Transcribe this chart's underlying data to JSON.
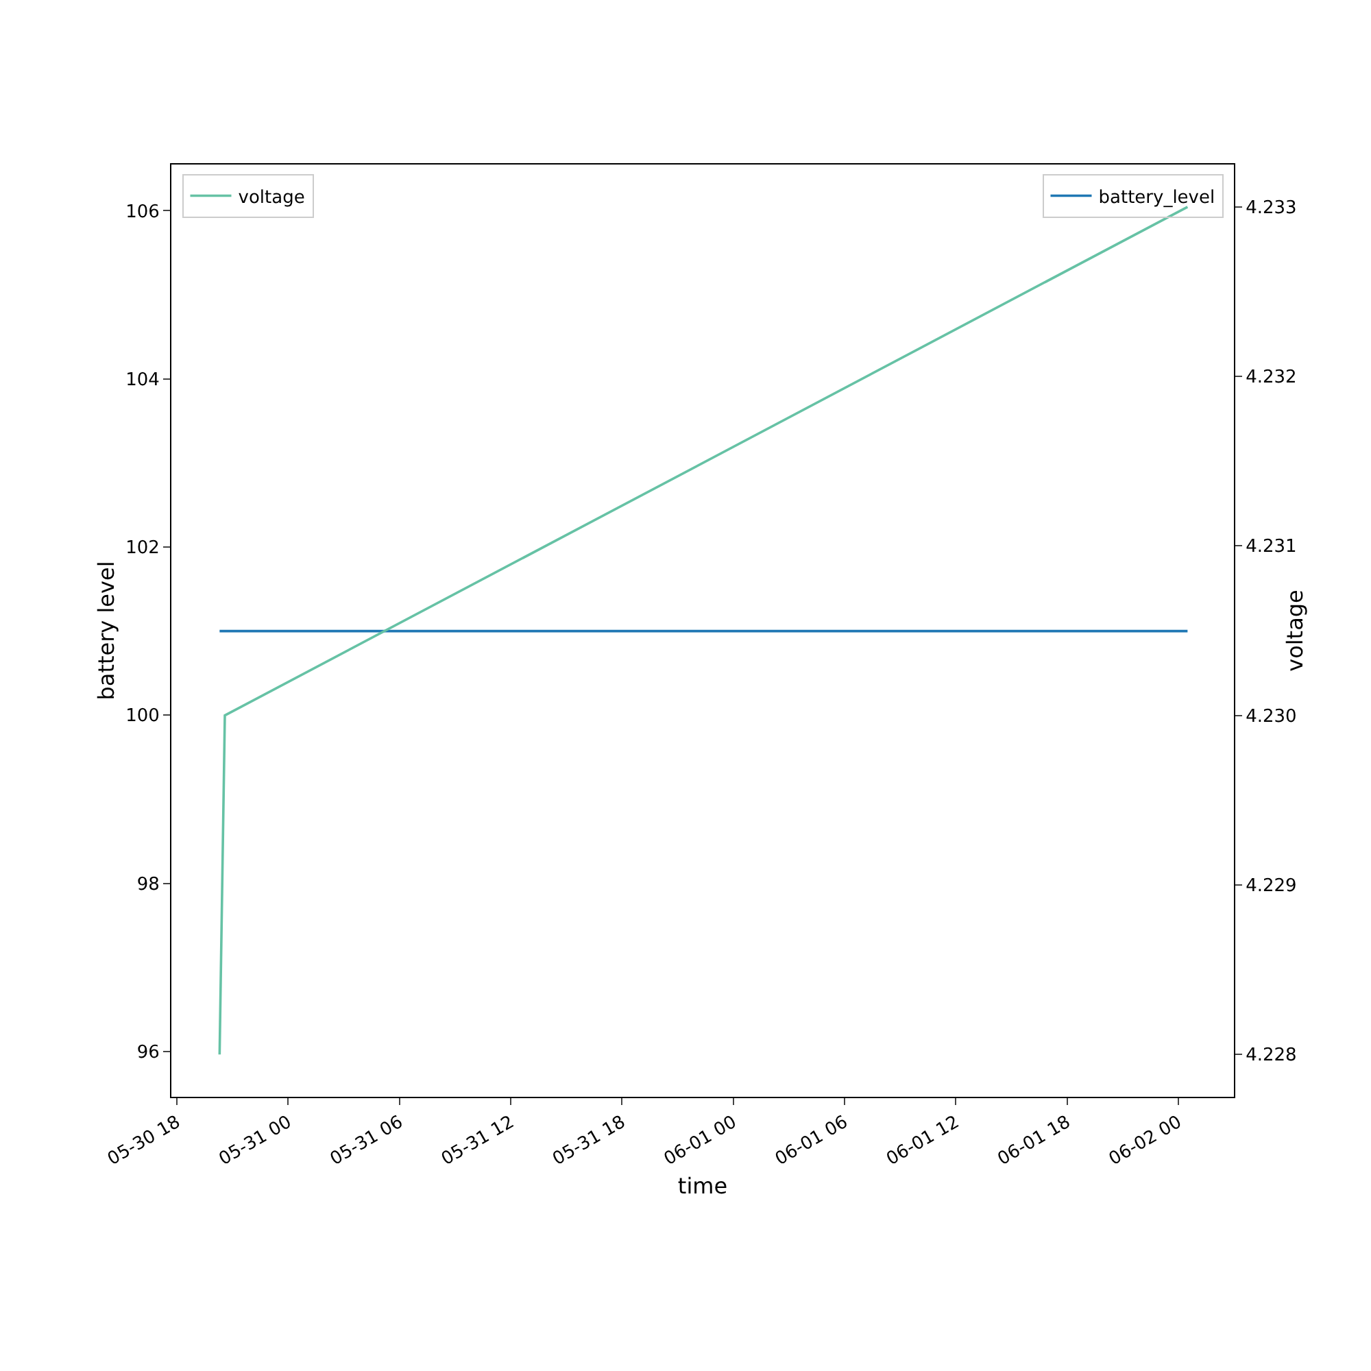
{
  "chart_data": {
    "type": "line",
    "xlabel": "time",
    "ylabel": "battery level",
    "y2label": "voltage",
    "series": [
      {
        "name": "battery_level",
        "color": "#1f77b4",
        "x": [
          "--05-30T20:18",
          "--06-02T00:30"
        ],
        "values": [
          101,
          101
        ]
      },
      {
        "name": "voltage",
        "color": "#66c2a5",
        "axis": "y2",
        "x": [
          "--05-30T20:18",
          "--05-30T20:35",
          "--06-02T00:30"
        ],
        "values": [
          4.228,
          4.23,
          4.233
        ]
      }
    ],
    "xlim": [
      "--05-30T17:42",
      "--06-02T03:00"
    ],
    "xticks": [
      {
        "value": "--05-30T18:00",
        "label": "05-30 18"
      },
      {
        "value": "--05-31T00:00",
        "label": "05-31 00"
      },
      {
        "value": "--05-31T06:00",
        "label": "05-31 06"
      },
      {
        "value": "--05-31T12:00",
        "label": "05-31 12"
      },
      {
        "value": "--05-31T18:00",
        "label": "05-31 18"
      },
      {
        "value": "--06-01T00:00",
        "label": "06-01 00"
      },
      {
        "value": "--06-01T06:00",
        "label": "06-01 06"
      },
      {
        "value": "--06-01T12:00",
        "label": "06-01 12"
      },
      {
        "value": "--06-01T18:00",
        "label": "06-01 18"
      },
      {
        "value": "--06-02T00:00",
        "label": "06-02 00"
      }
    ],
    "ylim": [
      95.46,
      106.55
    ],
    "yticks": [
      96,
      98,
      100,
      102,
      104,
      106
    ],
    "y2lim": [
      4.22775,
      4.23325
    ],
    "y2ticks": [
      {
        "value": 4.228,
        "label": "4.228"
      },
      {
        "value": 4.229,
        "label": "4.229"
      },
      {
        "value": 4.23,
        "label": "4.230"
      },
      {
        "value": 4.231,
        "label": "4.231"
      },
      {
        "value": 4.232,
        "label": "4.232"
      },
      {
        "value": 4.233,
        "label": "4.233"
      }
    ],
    "grid": false,
    "legend": "top",
    "marker": "none",
    "line_style": "solid"
  }
}
